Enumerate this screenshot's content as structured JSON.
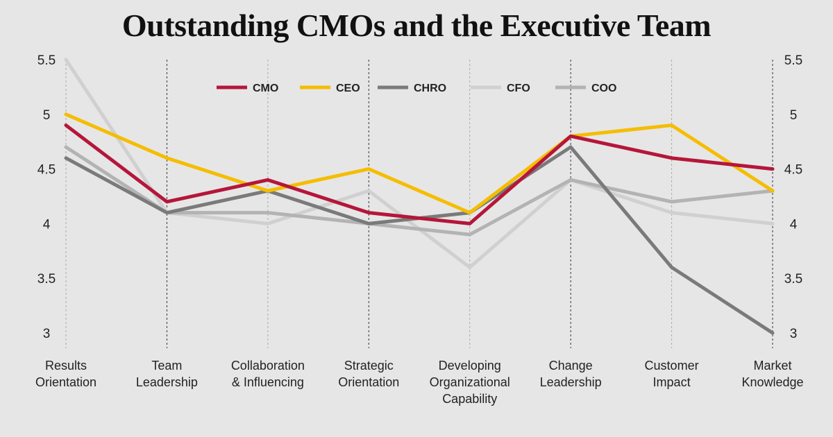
{
  "chart_data": {
    "type": "line",
    "title": "Outstanding CMOs and the Executive Team",
    "categories": [
      [
        "Results",
        "Orientation"
      ],
      [
        "Team",
        "Leadership"
      ],
      [
        "Collaboration",
        "& Influencing"
      ],
      [
        "Strategic",
        "Orientation"
      ],
      [
        "Developing",
        "Organizational",
        "Capability"
      ],
      [
        "Change",
        "Leadership"
      ],
      [
        "Customer",
        "Impact"
      ],
      [
        "Market",
        "Knowledge"
      ]
    ],
    "ylim": [
      3,
      5.5
    ],
    "yticks": [
      "3",
      "3.5",
      "4",
      "4.5",
      "5",
      "5.5"
    ],
    "legend_position": "top-center",
    "series": [
      {
        "name": "CMO",
        "color": "#b5163a",
        "values": [
          4.9,
          4.2,
          4.4,
          4.1,
          4.0,
          4.8,
          4.6,
          4.5
        ]
      },
      {
        "name": "CEO",
        "color": "#f5bd00",
        "values": [
          5.0,
          4.6,
          4.3,
          4.5,
          4.1,
          4.8,
          4.9,
          4.3
        ]
      },
      {
        "name": "CHRO",
        "color": "#7a7a7a",
        "values": [
          4.6,
          4.1,
          4.3,
          4.0,
          4.1,
          4.7,
          3.6,
          3.0
        ]
      },
      {
        "name": "CFO",
        "color": "#d0d0d0",
        "values": [
          5.5,
          4.1,
          4.0,
          4.3,
          3.6,
          4.4,
          4.1,
          4.0
        ]
      },
      {
        "name": "COO",
        "color": "#b3b3b3",
        "values": [
          4.7,
          4.1,
          4.1,
          4.0,
          3.9,
          4.4,
          4.2,
          4.3
        ]
      }
    ],
    "dashed_guides": {
      "dark": [
        "Team",
        "Strategic",
        "Change",
        "Market"
      ],
      "light": [
        "Results",
        "Collaboration",
        "Developing",
        "Customer"
      ]
    }
  }
}
